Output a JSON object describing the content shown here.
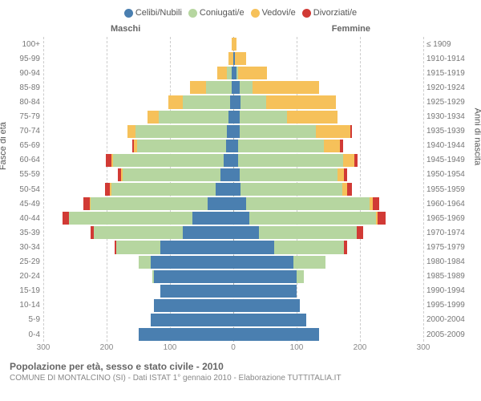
{
  "legend": [
    {
      "label": "Celibi/Nubili",
      "color": "#4a7fb0"
    },
    {
      "label": "Coniugati/e",
      "color": "#b6d6a0"
    },
    {
      "label": "Vedovi/e",
      "color": "#f6c15a"
    },
    {
      "label": "Divorziati/e",
      "color": "#d13a35"
    }
  ],
  "headers": {
    "male": "Maschi",
    "female": "Femmine"
  },
  "axis_titles": {
    "left": "Fasce di età",
    "right": "Anni di nascita"
  },
  "x_axis": {
    "max": 300,
    "ticks": [
      300,
      200,
      100,
      0,
      100,
      200,
      300
    ]
  },
  "colors": {
    "grid": "#cccccc",
    "center_grid": "#aaaaaa",
    "text": "#666666",
    "text_light": "#888888",
    "background": "#ffffff"
  },
  "fonts": {
    "legend": 11,
    "labels": 10,
    "title": 12,
    "subtitle": 10
  },
  "footer": {
    "title": "Popolazione per età, sesso e stato civile - 2010",
    "subtitle": "COMUNE DI MONTALCINO (SI) - Dati ISTAT 1° gennaio 2010 - Elaborazione TUTTITALIA.IT"
  },
  "rows": [
    {
      "age": "100+",
      "birth": "≤ 1909",
      "male": {
        "cel": 0,
        "con": 0,
        "ved": 3,
        "div": 0
      },
      "female": {
        "cel": 0,
        "con": 0,
        "ved": 5,
        "div": 0
      }
    },
    {
      "age": "95-99",
      "birth": "1910-1914",
      "male": {
        "cel": 0,
        "con": 0,
        "ved": 8,
        "div": 0
      },
      "female": {
        "cel": 2,
        "con": 0,
        "ved": 18,
        "div": 0
      }
    },
    {
      "age": "90-94",
      "birth": "1915-1919",
      "male": {
        "cel": 2,
        "con": 8,
        "ved": 15,
        "div": 0
      },
      "female": {
        "cel": 5,
        "con": 3,
        "ved": 45,
        "div": 0
      }
    },
    {
      "age": "85-89",
      "birth": "1920-1924",
      "male": {
        "cel": 3,
        "con": 40,
        "ved": 25,
        "div": 0
      },
      "female": {
        "cel": 10,
        "con": 20,
        "ved": 105,
        "div": 0
      }
    },
    {
      "age": "80-84",
      "birth": "1925-1929",
      "male": {
        "cel": 5,
        "con": 75,
        "ved": 22,
        "div": 0
      },
      "female": {
        "cel": 12,
        "con": 40,
        "ved": 110,
        "div": 0
      }
    },
    {
      "age": "75-79",
      "birth": "1930-1934",
      "male": {
        "cel": 8,
        "con": 110,
        "ved": 18,
        "div": 0
      },
      "female": {
        "cel": 10,
        "con": 75,
        "ved": 80,
        "div": 0
      }
    },
    {
      "age": "70-74",
      "birth": "1935-1939",
      "male": {
        "cel": 10,
        "con": 145,
        "ved": 12,
        "div": 0
      },
      "female": {
        "cel": 10,
        "con": 120,
        "ved": 55,
        "div": 3
      }
    },
    {
      "age": "65-69",
      "birth": "1940-1944",
      "male": {
        "cel": 12,
        "con": 140,
        "ved": 5,
        "div": 3
      },
      "female": {
        "cel": 8,
        "con": 135,
        "ved": 25,
        "div": 5
      }
    },
    {
      "age": "60-64",
      "birth": "1945-1949",
      "male": {
        "cel": 15,
        "con": 175,
        "ved": 3,
        "div": 8
      },
      "female": {
        "cel": 8,
        "con": 165,
        "ved": 18,
        "div": 5
      }
    },
    {
      "age": "55-59",
      "birth": "1950-1954",
      "male": {
        "cel": 20,
        "con": 155,
        "ved": 2,
        "div": 5
      },
      "female": {
        "cel": 10,
        "con": 155,
        "ved": 10,
        "div": 5
      }
    },
    {
      "age": "50-54",
      "birth": "1955-1959",
      "male": {
        "cel": 28,
        "con": 165,
        "ved": 2,
        "div": 8
      },
      "female": {
        "cel": 12,
        "con": 160,
        "ved": 8,
        "div": 8
      }
    },
    {
      "age": "45-49",
      "birth": "1960-1964",
      "male": {
        "cel": 40,
        "con": 185,
        "ved": 2,
        "div": 10
      },
      "female": {
        "cel": 20,
        "con": 195,
        "ved": 5,
        "div": 10
      }
    },
    {
      "age": "40-44",
      "birth": "1965-1969",
      "male": {
        "cel": 65,
        "con": 195,
        "ved": 0,
        "div": 10
      },
      "female": {
        "cel": 25,
        "con": 200,
        "ved": 3,
        "div": 12
      }
    },
    {
      "age": "35-39",
      "birth": "1970-1974",
      "male": {
        "cel": 80,
        "con": 140,
        "ved": 0,
        "div": 5
      },
      "female": {
        "cel": 40,
        "con": 155,
        "ved": 0,
        "div": 10
      }
    },
    {
      "age": "30-34",
      "birth": "1975-1979",
      "male": {
        "cel": 115,
        "con": 70,
        "ved": 0,
        "div": 3
      },
      "female": {
        "cel": 65,
        "con": 110,
        "ved": 0,
        "div": 5
      }
    },
    {
      "age": "25-29",
      "birth": "1980-1984",
      "male": {
        "cel": 130,
        "con": 20,
        "ved": 0,
        "div": 0
      },
      "female": {
        "cel": 95,
        "con": 50,
        "ved": 0,
        "div": 0
      }
    },
    {
      "age": "20-24",
      "birth": "1985-1989",
      "male": {
        "cel": 125,
        "con": 3,
        "ved": 0,
        "div": 0
      },
      "female": {
        "cel": 100,
        "con": 12,
        "ved": 0,
        "div": 0
      }
    },
    {
      "age": "15-19",
      "birth": "1990-1994",
      "male": {
        "cel": 115,
        "con": 0,
        "ved": 0,
        "div": 0
      },
      "female": {
        "cel": 100,
        "con": 0,
        "ved": 0,
        "div": 0
      }
    },
    {
      "age": "10-14",
      "birth": "1995-1999",
      "male": {
        "cel": 125,
        "con": 0,
        "ved": 0,
        "div": 0
      },
      "female": {
        "cel": 105,
        "con": 0,
        "ved": 0,
        "div": 0
      }
    },
    {
      "age": "5-9",
      "birth": "2000-2004",
      "male": {
        "cel": 130,
        "con": 0,
        "ved": 0,
        "div": 0
      },
      "female": {
        "cel": 115,
        "con": 0,
        "ved": 0,
        "div": 0
      }
    },
    {
      "age": "0-4",
      "birth": "2005-2009",
      "male": {
        "cel": 150,
        "con": 0,
        "ved": 0,
        "div": 0
      },
      "female": {
        "cel": 135,
        "con": 0,
        "ved": 0,
        "div": 0
      }
    }
  ]
}
